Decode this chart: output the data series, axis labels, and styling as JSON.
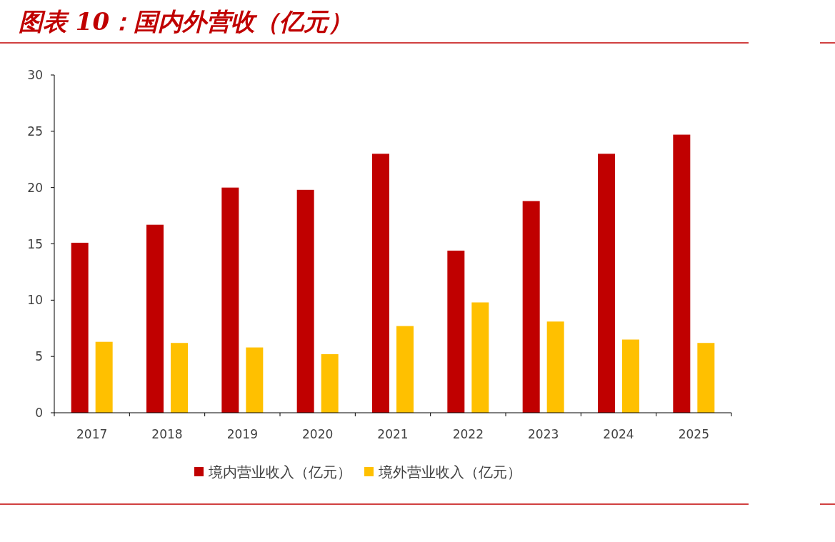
{
  "chart_data": {
    "type": "bar",
    "title": "图表 10：国内外营收（亿元）",
    "categories": [
      "2017",
      "2018",
      "2019",
      "2020",
      "2021",
      "2022",
      "2023",
      "2024",
      "2025"
    ],
    "series": [
      {
        "name": "境内营业收入（亿元）",
        "color": "#c00000",
        "values": [
          15.1,
          16.7,
          20.0,
          19.8,
          23.0,
          14.4,
          18.8,
          23.0,
          24.7
        ]
      },
      {
        "name": "境外营业收入（亿元）",
        "color": "#ffc000",
        "values": [
          6.3,
          6.2,
          5.8,
          5.2,
          7.7,
          9.8,
          8.1,
          6.5,
          6.2
        ]
      }
    ],
    "ylim": [
      0,
      30
    ],
    "yticks": [
      0,
      5,
      10,
      15,
      20,
      25,
      30
    ],
    "grid": false,
    "legend": "bottom"
  }
}
